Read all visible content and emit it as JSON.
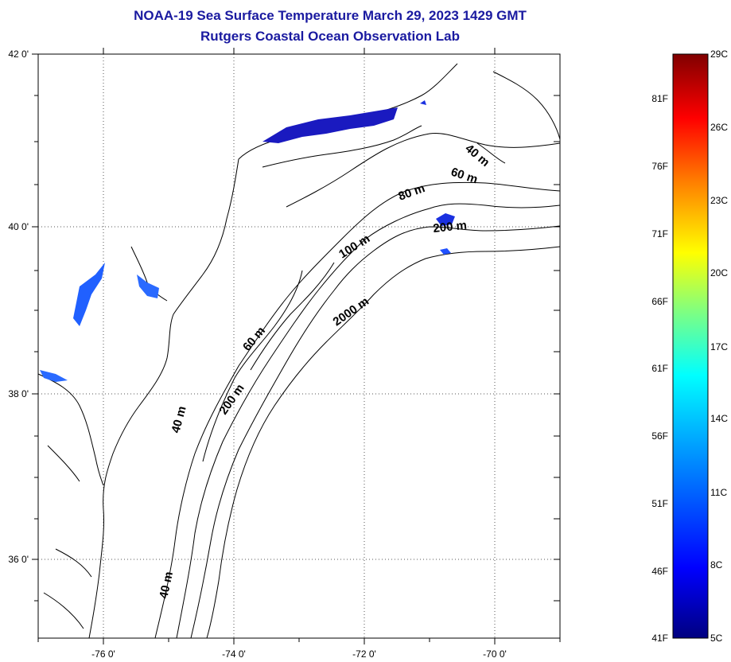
{
  "title_line1": "NOAA-19 Sea Surface Temperature March 29, 2023 1429 GMT",
  "title_line2": "Rutgers Coastal Ocean Observation Lab",
  "map": {
    "lat_ticks": [
      "42 0'",
      "40 0'",
      "38 0'",
      "36 0'"
    ],
    "lon_ticks": [
      "-76 0'",
      "-74 0'",
      "-72 0'",
      "-70 0'"
    ],
    "contour_labels": [
      "40 m",
      "60 m",
      "80 m",
      "200 m",
      "100 m",
      "2000 m",
      "60 m",
      "200 m",
      "40 m",
      "40 m"
    ],
    "land_color": "#ffffff",
    "ocean_no_data_color": "#ffffff"
  },
  "colorbar": {
    "fahrenheit_labels": [
      "81F",
      "76F",
      "71F",
      "66F",
      "61F",
      "56F",
      "51F",
      "46F",
      "41F"
    ],
    "celsius_labels": [
      "29C",
      "26C",
      "23C",
      "20C",
      "17C",
      "14C",
      "11C",
      "8C",
      "5C"
    ],
    "colors": [
      "#800000",
      "#ff0000",
      "#ff8000",
      "#ffff00",
      "#80ff80",
      "#00ffff",
      "#0080ff",
      "#0000ff",
      "#000080"
    ]
  }
}
